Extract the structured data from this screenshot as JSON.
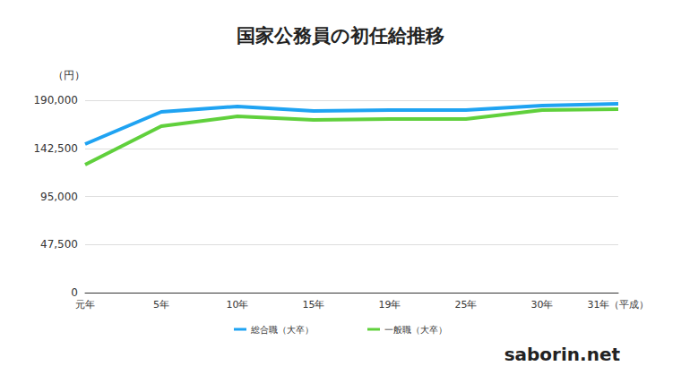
{
  "chart_data": {
    "type": "line",
    "title": "国家公務員の初任給推移",
    "y_label": "（円）",
    "annotation": "saborin.net",
    "categories": [
      "元年",
      "5年",
      "10年",
      "15年",
      "19年",
      "25年",
      "30年",
      "31年（平成）"
    ],
    "series": [
      {
        "name": "総合職（大卒）",
        "color": "#1fa3f2",
        "values": [
          146700,
          178500,
          183900,
          179400,
          180300,
          180300,
          184700,
          186500
        ]
      },
      {
        "name": "一般職（大卒）",
        "color": "#60d03c",
        "values": [
          126400,
          164400,
          174100,
          170600,
          171500,
          171500,
          180300,
          181200
        ]
      }
    ],
    "ylim": [
      0,
      190000
    ],
    "yticks": [
      0,
      {
        "value": 47500,
        "label": "47,500"
      },
      {
        "value": 95000,
        "label": "95,000"
      },
      {
        "value": 142500,
        "label": "142,500"
      },
      {
        "value": 190000,
        "label": "190,000"
      }
    ],
    "grid": true,
    "legend": "bottom"
  }
}
